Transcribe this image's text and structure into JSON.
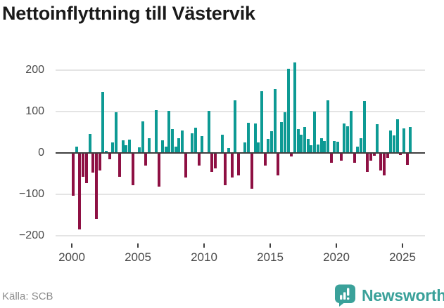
{
  "chart_data": {
    "type": "bar",
    "title": "Nettoinflyttning till Västervik",
    "start_period": "2000 Q1",
    "frequency": "quarterly",
    "x_tick_labels": [
      "2000",
      "2005",
      "2010",
      "2015",
      "2020",
      "2025"
    ],
    "x_tick_quarter_index": [
      0,
      20,
      40,
      60,
      80,
      100
    ],
    "y_ticks": [
      {
        "label": "200",
        "value": 200
      },
      {
        "label": "100",
        "value": 100
      },
      {
        "label": "0",
        "value": 0
      },
      {
        "label": "−100",
        "value": -100
      },
      {
        "label": "−200",
        "value": -200
      }
    ],
    "ylim": [
      -210,
      225
    ],
    "grid": "horizontal",
    "values": [
      -104,
      16,
      -185,
      -58,
      -73,
      46,
      -48,
      -160,
      -42,
      147,
      6,
      -15,
      25,
      98,
      -58,
      31,
      19,
      33,
      -78,
      2,
      13,
      76,
      -30,
      35,
      2,
      104,
      -82,
      30,
      16,
      102,
      58,
      15,
      36,
      55,
      -59,
      2,
      47,
      61,
      -31,
      41,
      2,
      101,
      -46,
      -37,
      2,
      44,
      -78,
      12,
      -59,
      127,
      -55,
      2,
      26,
      73,
      -86,
      72,
      25,
      149,
      -31,
      34,
      52,
      154,
      -54,
      75,
      99,
      203,
      -8,
      218,
      58,
      44,
      62,
      34,
      18,
      100,
      20,
      35,
      29,
      128,
      -23,
      29,
      27,
      -19,
      71,
      64,
      101,
      -23,
      15,
      35,
      126,
      -46,
      -19,
      -6,
      69,
      -42,
      -54,
      -11,
      54,
      42,
      82,
      -5,
      60,
      -28,
      62
    ]
  },
  "footer": {
    "source": "Källa: SCB",
    "brand": "Newsworthy"
  },
  "colors": {
    "positive_bar": "#0d9a94",
    "negative_bar": "#8e1043",
    "gridline": "#e4e4e4",
    "zero_line": "#3f3f3f",
    "axis_text": "#4a4a4a",
    "title_text": "#1a1a1a",
    "source_text": "#8d8d8d",
    "brand_teal": "#3aa19a",
    "icon_glyph": "#ffffff"
  }
}
